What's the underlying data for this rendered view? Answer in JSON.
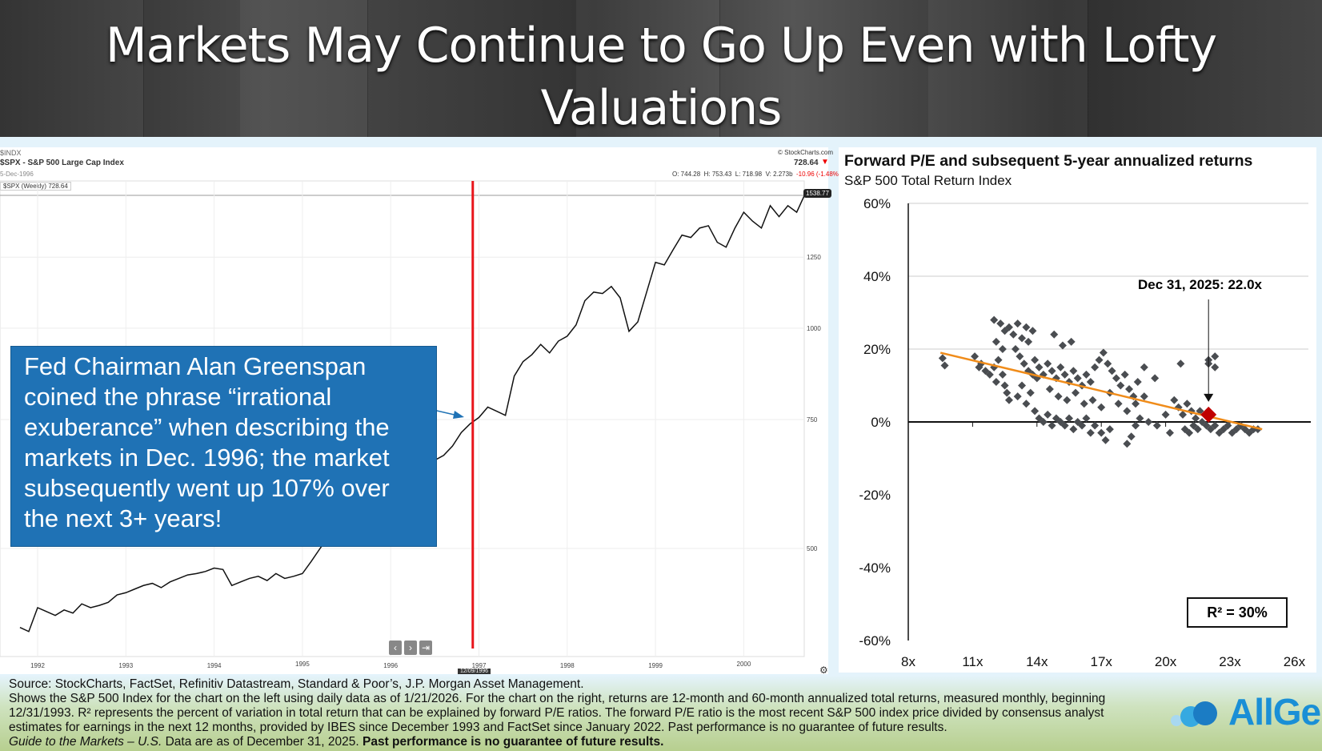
{
  "header": {
    "title_line1": "Markets May Continue to Go Up Even with Lofty",
    "title_line2": "Valuations"
  },
  "left_chart": {
    "symbol": "$INDX",
    "name": "$SPX - S&P 500 Large Cap Index",
    "date": "5-Dec-1996",
    "legend": "$SPX (Weekly) 728.64",
    "provider": "© StockCharts.com",
    "last": "728.64",
    "open": "O: 744.28",
    "high": "H: 753.43",
    "low": "L: 718.98",
    "volume": "V: 2.273b",
    "change": "-10.96 (-1.48%)",
    "price_tag": "1538.77",
    "cursor_date": "12/09/1996",
    "callout": "Fed Chairman Alan Greenspan coined the phrase “irrational exuberance” when describing the markets in Dec. 1996; the market subsequently went up 107% over the next 3+ years!",
    "colors": {
      "marker": "#e8141a",
      "callout": "#1f72b5"
    }
  },
  "chart_data": [
    {
      "type": "line",
      "title": "$SPX - S&P 500 Large Cap Index",
      "yscale": "log",
      "ylim": [
        380,
        1600
      ],
      "yticks": [
        "500",
        "750",
        "1000",
        "1250"
      ],
      "ytick_values": [
        500,
        750,
        1000,
        1250
      ],
      "xticks": [
        "1992",
        "1993",
        "1994",
        "1995",
        "1996",
        "1997",
        "1998",
        "1999",
        "2000"
      ],
      "xtick_values": [
        1992,
        1993,
        1994,
        1995,
        1996,
        1997,
        1998,
        1999,
        2000
      ],
      "marker_x": 1996.93,
      "x": [
        1991.8,
        1991.9,
        1992.0,
        1992.1,
        1992.2,
        1992.3,
        1992.4,
        1992.5,
        1992.6,
        1992.7,
        1992.8,
        1992.9,
        1993.0,
        1993.1,
        1993.2,
        1993.3,
        1993.4,
        1993.5,
        1993.6,
        1993.7,
        1993.8,
        1993.9,
        1994.0,
        1994.1,
        1994.2,
        1994.3,
        1994.4,
        1994.5,
        1994.6,
        1994.7,
        1994.8,
        1994.9,
        1995.0,
        1995.1,
        1995.2,
        1995.3,
        1995.4,
        1995.5,
        1995.6,
        1995.7,
        1995.8,
        1995.9,
        1996.0,
        1996.1,
        1996.2,
        1996.3,
        1996.4,
        1996.5,
        1996.6,
        1996.7,
        1996.8,
        1996.9,
        1997.0,
        1997.1,
        1997.2,
        1997.3,
        1997.4,
        1997.5,
        1997.6,
        1997.7,
        1997.8,
        1997.9,
        1998.0,
        1998.1,
        1998.2,
        1998.3,
        1998.4,
        1998.5,
        1998.6,
        1998.7,
        1998.8,
        1998.9,
        1999.0,
        1999.1,
        1999.2,
        1999.3,
        1999.4,
        1999.5,
        1999.6,
        1999.7,
        1999.8,
        1999.9,
        2000.0,
        2000.1,
        2000.2,
        2000.3,
        2000.4,
        2000.5,
        2000.6,
        2000.7
      ],
      "y": [
        390,
        385,
        415,
        410,
        405,
        412,
        408,
        420,
        415,
        418,
        422,
        432,
        435,
        440,
        445,
        448,
        442,
        450,
        455,
        460,
        462,
        465,
        470,
        468,
        445,
        450,
        455,
        458,
        452,
        462,
        455,
        458,
        462,
        480,
        500,
        520,
        540,
        545,
        560,
        570,
        580,
        600,
        615,
        630,
        650,
        655,
        665,
        660,
        670,
        690,
        720,
        740,
        755,
        780,
        770,
        760,
        860,
        900,
        920,
        950,
        925,
        960,
        975,
        1010,
        1090,
        1120,
        1115,
        1140,
        1100,
        990,
        1020,
        1120,
        1230,
        1220,
        1280,
        1340,
        1330,
        1370,
        1380,
        1310,
        1290,
        1370,
        1440,
        1400,
        1370,
        1470,
        1420,
        1470,
        1440,
        1530
      ]
    },
    {
      "type": "scatter",
      "title": "Forward P/E and subsequent 5-year annualized returns",
      "subtitle": "S&P 500 Total Return Index",
      "xlabel": "",
      "ylabel": "",
      "xlim": [
        8,
        26
      ],
      "ylim": [
        -60,
        60
      ],
      "xticks": [
        "8x",
        "11x",
        "14x",
        "17x",
        "20x",
        "23x",
        "26x"
      ],
      "xtick_values": [
        8,
        11,
        14,
        17,
        20,
        23,
        26
      ],
      "yticks": [
        "60%",
        "40%",
        "20%",
        "0%",
        "-20%",
        "-40%",
        "-60%"
      ],
      "ytick_values": [
        60,
        40,
        20,
        0,
        -20,
        -40,
        -60
      ],
      "points": [
        [
          9.6,
          17.5
        ],
        [
          9.7,
          15.5
        ],
        [
          11.1,
          18
        ],
        [
          11.3,
          15
        ],
        [
          11.4,
          16
        ],
        [
          11.6,
          14
        ],
        [
          11.8,
          13
        ],
        [
          12,
          15
        ],
        [
          12.1,
          11
        ],
        [
          12.2,
          17
        ],
        [
          12.4,
          13
        ],
        [
          12.5,
          10
        ],
        [
          12.6,
          8
        ],
        [
          12.7,
          6
        ],
        [
          12.0,
          28
        ],
        [
          12.3,
          27
        ],
        [
          12.5,
          25
        ],
        [
          12.7,
          26
        ],
        [
          12.9,
          24
        ],
        [
          13.1,
          27
        ],
        [
          13.3,
          23
        ],
        [
          13.5,
          26
        ],
        [
          13.6,
          22
        ],
        [
          13.8,
          25
        ],
        [
          12.1,
          22
        ],
        [
          12.4,
          20
        ],
        [
          13.0,
          20
        ],
        [
          13.2,
          18
        ],
        [
          13.4,
          16
        ],
        [
          13.6,
          14
        ],
        [
          13.8,
          13
        ],
        [
          14.0,
          12
        ],
        [
          13.1,
          7
        ],
        [
          13.3,
          10
        ],
        [
          13.5,
          5
        ],
        [
          13.7,
          8
        ],
        [
          13.9,
          3
        ],
        [
          14.1,
          1
        ],
        [
          14.3,
          0
        ],
        [
          14.5,
          2
        ],
        [
          14.7,
          -1
        ],
        [
          14.9,
          1
        ],
        [
          15.1,
          0
        ],
        [
          15.3,
          -1
        ],
        [
          15.5,
          1
        ],
        [
          15.7,
          -2
        ],
        [
          15.9,
          0
        ],
        [
          16.1,
          -1
        ],
        [
          16.3,
          1
        ],
        [
          16.5,
          -3
        ],
        [
          16.7,
          -1
        ],
        [
          13.9,
          17
        ],
        [
          14.1,
          15
        ],
        [
          14.3,
          13
        ],
        [
          14.5,
          16
        ],
        [
          14.7,
          14
        ],
        [
          14.9,
          12
        ],
        [
          15.1,
          15
        ],
        [
          15.3,
          13
        ],
        [
          15.5,
          11
        ],
        [
          15.7,
          14
        ],
        [
          15.9,
          12
        ],
        [
          16.1,
          10
        ],
        [
          16.3,
          13
        ],
        [
          16.5,
          11
        ],
        [
          16.7,
          15
        ],
        [
          16.9,
          17
        ],
        [
          17.1,
          19
        ],
        [
          17.3,
          16
        ],
        [
          17.5,
          14
        ],
        [
          17.7,
          12
        ],
        [
          17.9,
          10
        ],
        [
          18.1,
          13
        ],
        [
          18.3,
          9
        ],
        [
          18.5,
          7
        ],
        [
          18.7,
          11
        ],
        [
          19.0,
          15
        ],
        [
          19.5,
          12
        ],
        [
          14.8,
          24
        ],
        [
          15.2,
          21
        ],
        [
          15.6,
          22
        ],
        [
          14.6,
          9
        ],
        [
          15.0,
          7
        ],
        [
          15.4,
          6
        ],
        [
          15.8,
          8
        ],
        [
          16.2,
          5
        ],
        [
          16.6,
          6
        ],
        [
          17.0,
          4
        ],
        [
          17.4,
          8
        ],
        [
          17.8,
          5
        ],
        [
          18.2,
          3
        ],
        [
          18.6,
          5
        ],
        [
          19.0,
          7
        ],
        [
          17.0,
          -3
        ],
        [
          17.2,
          -5
        ],
        [
          17.4,
          -2
        ],
        [
          18.2,
          -6
        ],
        [
          18.4,
          -4
        ],
        [
          18.6,
          -1
        ],
        [
          18.8,
          1
        ],
        [
          19.2,
          0
        ],
        [
          19.6,
          -1
        ],
        [
          20.0,
          2
        ],
        [
          20.2,
          -3
        ],
        [
          20.7,
          16
        ],
        [
          20.4,
          6
        ],
        [
          20.6,
          4
        ],
        [
          20.8,
          2
        ],
        [
          21.0,
          5
        ],
        [
          21.2,
          3
        ],
        [
          21.4,
          1
        ],
        [
          21.6,
          3
        ],
        [
          20.9,
          -2
        ],
        [
          21.1,
          -3
        ],
        [
          21.3,
          -1
        ],
        [
          21.5,
          -2
        ],
        [
          21.7,
          0
        ],
        [
          21.9,
          -1
        ],
        [
          22.1,
          -2
        ],
        [
          22.3,
          -1
        ],
        [
          22.5,
          -3
        ],
        [
          22.7,
          -2
        ],
        [
          22.9,
          -1
        ],
        [
          23.1,
          -3
        ],
        [
          23.3,
          -2
        ],
        [
          23.5,
          -1
        ],
        [
          23.7,
          -2
        ],
        [
          23.9,
          -3
        ],
        [
          24.1,
          -2
        ],
        [
          24.3,
          -2
        ],
        [
          22.0,
          17
        ],
        [
          22.0,
          16
        ],
        [
          22.3,
          18
        ],
        [
          22.3,
          15
        ]
      ],
      "highlight": {
        "label": "Dec 31, 2025: 22.0x",
        "x": 22.0,
        "y": 2
      },
      "trendline": [
        [
          9.5,
          19
        ],
        [
          24.5,
          -2
        ]
      ],
      "r2_label": "R² = 30%",
      "colors": {
        "points": "#4a4d51",
        "highlight": "#c00000",
        "trend": "#f08c1a"
      }
    }
  ],
  "footer": {
    "source": "Source: StockCharts, FactSet, Refinitiv Datastream, Standard & Poor’s, J.P. Morgan Asset Management.",
    "note": "Shows the S&P 500 Index for the chart on the left using daily data as of 1/21/2026. For the chart on the right, returns are 12-month and 60-month annualized total returns, measured monthly, beginning 12/31/1993. R² represents the percent of variation in total return that can be explained by forward P/E ratios. The forward P/E ratio is the most recent S&P 500 index price divided by consensus analyst estimates for earnings in the next 12 months, provided by IBES since December 1993 and FactSet since January 2022. Past performance is no guarantee of future results.",
    "guide": "Guide to the Markets – U.S.",
    "data_asof": " Data are as of December 31, 2025. ",
    "disclaimer": "Past performance is no guarantee of future results."
  },
  "logo": {
    "text": "AllGen"
  }
}
